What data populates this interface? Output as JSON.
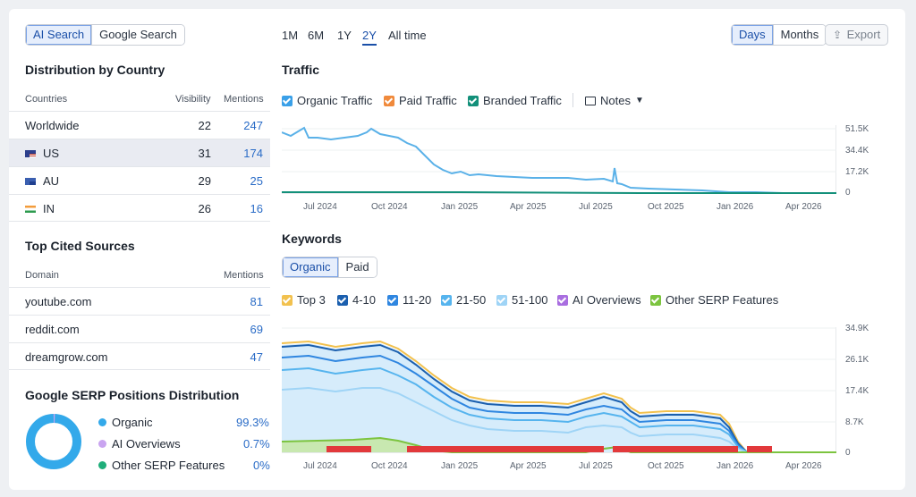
{
  "source_tabs": [
    "AI Search",
    "Google Search"
  ],
  "country_section": {
    "title": "Distribution by Country",
    "headers": {
      "country": "Countries",
      "visibility": "Visibility",
      "mentions": "Mentions"
    },
    "rows": [
      {
        "name": "Worldwide",
        "visibility": "22",
        "mentions": "247"
      },
      {
        "name": "US",
        "visibility": "31",
        "mentions": "174"
      },
      {
        "name": "AU",
        "visibility": "29",
        "mentions": "25"
      },
      {
        "name": "IN",
        "visibility": "26",
        "mentions": "16"
      }
    ]
  },
  "sources_section": {
    "title": "Top Cited Sources",
    "headers": {
      "domain": "Domain",
      "mentions": "Mentions"
    },
    "rows": [
      {
        "domain": "youtube.com",
        "mentions": "81"
      },
      {
        "domain": "reddit.com",
        "mentions": "69"
      },
      {
        "domain": "dreamgrow.com",
        "mentions": "47"
      }
    ]
  },
  "serp_section": {
    "title": "Google SERP Positions Distribution",
    "items": [
      {
        "label": "Organic",
        "value": "99.3%",
        "color": "#33a9ea"
      },
      {
        "label": "AI Overviews",
        "value": "0.7%",
        "color": "#c9a4f0"
      },
      {
        "label": "Other SERP Features",
        "value": "0%",
        "color": "#1fae7a"
      }
    ]
  },
  "timeframes": [
    "1M",
    "6M",
    "1Y",
    "2Y",
    "All time"
  ],
  "active_timeframe": "2Y",
  "granularity": [
    "Days",
    "Months"
  ],
  "export_label": "Export",
  "traffic": {
    "title": "Traffic",
    "legend": [
      {
        "label": "Organic Traffic",
        "color": "#3aa0e8"
      },
      {
        "label": "Paid Traffic",
        "color": "#f08a3c"
      },
      {
        "label": "Branded Traffic",
        "color": "#13907a"
      }
    ],
    "notes_label": "Notes",
    "y_ticks": [
      "51.5K",
      "34.4K",
      "17.2K",
      "0"
    ],
    "x_ticks": [
      "Jul 2024",
      "Oct 2024",
      "Jan 2025",
      "Apr 2025",
      "Jul 2025",
      "Oct 2025",
      "Jan 2026",
      "Apr 2026"
    ]
  },
  "keywords": {
    "title": "Keywords",
    "tabs": [
      "Organic",
      "Paid"
    ],
    "legend": [
      {
        "label": "Top 3",
        "color": "#f2c14e"
      },
      {
        "label": "4-10",
        "color": "#1b5fae"
      },
      {
        "label": "11-20",
        "color": "#2f86e0"
      },
      {
        "label": "21-50",
        "color": "#56b4ee"
      },
      {
        "label": "51-100",
        "color": "#9fd4f6"
      },
      {
        "label": "AI Overviews",
        "color": "#a96ee0"
      },
      {
        "label": "Other SERP Features",
        "color": "#7cc43f"
      }
    ],
    "y_ticks": [
      "34.9K",
      "26.1K",
      "17.4K",
      "8.7K",
      "0"
    ],
    "x_ticks": [
      "Jul 2024",
      "Oct 2024",
      "Jan 2025",
      "Apr 2025",
      "Jul 2025",
      "Oct 2025",
      "Jan 2026",
      "Apr 2026"
    ]
  }
}
